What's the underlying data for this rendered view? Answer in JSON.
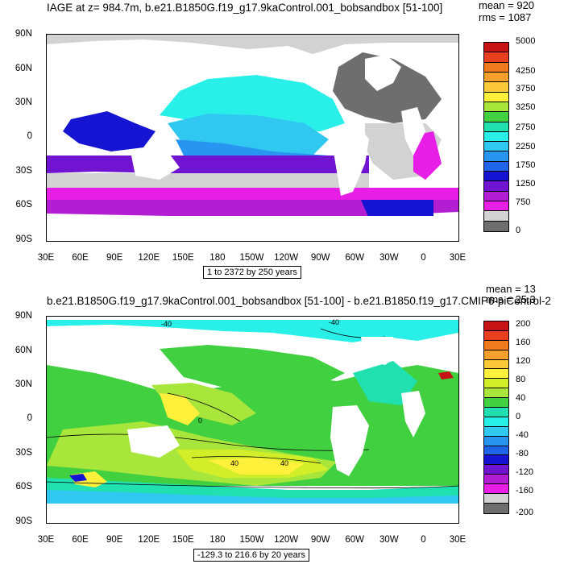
{
  "top": {
    "title": "IAGE at z= 984.7m, b.e21.B1850G.f19_g17.9kaControl.001_bobsandbox [51-100]",
    "mean": "mean = 920",
    "rms": "rms = 1087",
    "range_label": "1 to 2372 by 250 years",
    "lat_labels": [
      "90N",
      "60N",
      "30N",
      "0",
      "30S",
      "60S",
      "90S"
    ],
    "lon_labels": [
      "30E",
      "60E",
      "90E",
      "120E",
      "150E",
      "180",
      "150W",
      "120W",
      "90W",
      "60W",
      "30W",
      "0",
      "30E"
    ],
    "colorbar_labels": [
      "5000",
      "4250",
      "3750",
      "3250",
      "2750",
      "2250",
      "1750",
      "1250",
      "750",
      "0"
    ],
    "colorbar_colors": [
      "#c61414",
      "#e8401e",
      "#f07a1e",
      "#f5a02c",
      "#fbc83a",
      "#fff03c",
      "#a8e63c",
      "#40d040",
      "#20e0b0",
      "#28f0e8",
      "#30c8f0",
      "#2896f0",
      "#1e64e6",
      "#1414d2",
      "#7014d2",
      "#b41ed2",
      "#e61ee6",
      "#d2d2d2",
      "#6e6e6e"
    ]
  },
  "bottom": {
    "title": "b.e21.B1850G.f19_g17.9kaControl.001_bobsandbox [51-100] - b.e21.B1850.f19_g17.CMIP6-piControl-2",
    "mean": "mean = 13",
    "rms": "rms = 25.3",
    "range_label": "-129.3 to 216.6 by 20 years",
    "lat_labels": [
      "90N",
      "60N",
      "30N",
      "0",
      "30S",
      "60S",
      "90S"
    ],
    "lon_labels": [
      "30E",
      "60E",
      "90E",
      "120E",
      "150E",
      "180",
      "150W",
      "120W",
      "90W",
      "60W",
      "30W",
      "0",
      "30E"
    ],
    "colorbar_labels": [
      "200",
      "160",
      "120",
      "80",
      "40",
      "0",
      "-40",
      "-80",
      "-120",
      "-160",
      "-200"
    ],
    "colorbar_colors": [
      "#c61414",
      "#e8401e",
      "#f07a1e",
      "#f5a02c",
      "#fbc83a",
      "#fff03c",
      "#d2ee28",
      "#a8e63c",
      "#40d040",
      "#20e0b0",
      "#28f0e8",
      "#30c8f0",
      "#2896f0",
      "#1e64e6",
      "#1414d2",
      "#7014d2",
      "#b41ed2",
      "#e61ee6",
      "#d2d2d2",
      "#6e6e6e"
    ],
    "contour_labels": [
      "-40",
      "40",
      "40",
      "-40",
      "0"
    ]
  }
}
